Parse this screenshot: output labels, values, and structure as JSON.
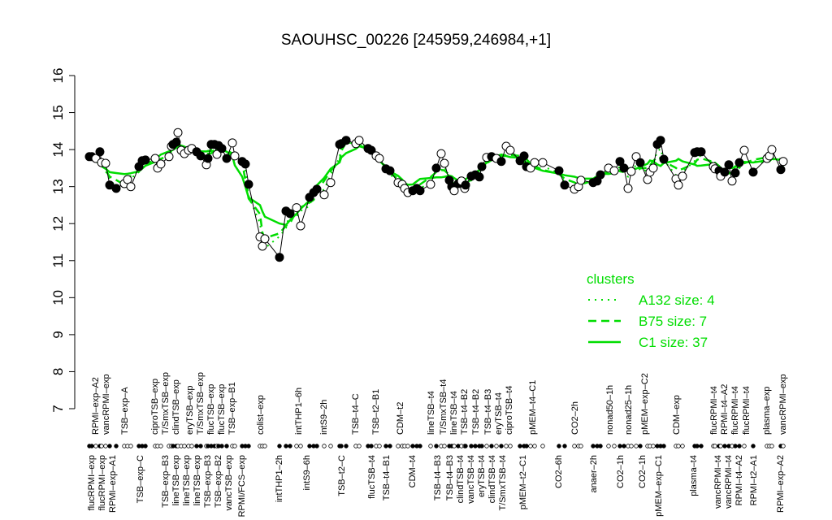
{
  "chart_data": {
    "type": "line",
    "title": "SAOUHSC_00226 [245959,246984,+1]",
    "xlabel": "",
    "ylabel": "",
    "ylim": [
      7,
      16
    ],
    "yticks": [
      "7",
      "8",
      "9",
      "10",
      "11",
      "12",
      "13",
      "14",
      "15",
      "16"
    ],
    "grid": false,
    "legend": {
      "placement": "right",
      "title": "clusters",
      "entries": [
        {
          "label": "A132 size: 4",
          "style": "dotted"
        },
        {
          "label": "B75 size: 7",
          "style": "dashed"
        },
        {
          "label": "C1 size: 37",
          "style": "solid"
        }
      ]
    },
    "colors": {
      "cluster": "#00dd00",
      "points": "#000000"
    },
    "values": [
      13.81,
      13.81,
      13.76,
      13.94,
      13.65,
      13.63,
      13.04,
      12.95,
      13.08,
      13.19,
      13.0,
      13.54,
      13.7,
      13.72,
      13.76,
      13.5,
      13.61,
      13.81,
      14.09,
      14.14,
      14.2,
      14.46,
      13.98,
      13.89,
      13.98,
      14.03,
      13.94,
      13.83,
      13.59,
      13.76,
      14.14,
      14.14,
      13.87,
      14.11,
      14.03,
      13.76,
      14.18,
      13.83,
      13.68,
      13.61,
      13.06,
      11.64,
      11.39,
      11.59,
      11.09,
      12.34,
      12.27,
      12.43,
      11.94,
      12.71,
      12.84,
      12.93,
      12.78,
      13.11,
      14.14,
      14.16,
      14.25,
      14.16,
      14.25,
      14.03,
      13.98,
      13.83,
      13.76,
      13.48,
      13.43,
      13.11,
      13.06,
      12.95,
      12.84,
      12.89,
      12.95,
      12.89,
      13.06,
      13.5,
      13.89,
      13.63,
      13.17,
      13.0,
      12.89,
      13.08,
      13.15,
      12.95,
      13.04,
      13.28,
      13.32,
      13.26,
      13.54,
      13.79,
      13.81,
      13.76,
      13.68,
      14.09,
      13.98,
      13.7,
      13.83,
      13.54,
      13.5,
      13.65,
      13.65,
      13.43,
      13.04,
      12.93,
      13.0,
      13.17,
      13.11,
      13.15,
      13.32,
      13.5,
      13.43,
      13.68,
      13.5,
      12.95,
      13.41,
      13.81,
      13.65,
      13.19,
      13.39,
      13.5,
      14.14,
      14.25,
      13.74,
      13.21,
      13.04,
      13.28,
      13.92,
      13.94,
      13.94,
      13.54,
      13.48,
      13.43,
      13.28,
      13.39,
      13.59,
      13.15,
      13.37,
      13.65,
      13.98,
      13.39,
      13.76,
      13.83,
      14.0,
      13.46,
      13.68
    ],
    "filled": [
      1,
      1,
      0,
      1,
      0,
      0,
      1,
      1,
      0,
      0,
      0,
      1,
      1,
      1,
      0,
      0,
      0,
      0,
      0,
      1,
      1,
      0,
      0,
      0,
      0,
      0,
      1,
      1,
      0,
      1,
      1,
      1,
      0,
      1,
      1,
      1,
      0,
      0,
      1,
      1,
      1,
      0,
      0,
      0,
      1,
      1,
      1,
      0,
      0,
      1,
      1,
      1,
      0,
      0,
      1,
      1,
      1,
      0,
      0,
      1,
      1,
      0,
      0,
      1,
      1,
      0,
      0,
      0,
      0,
      1,
      1,
      1,
      0,
      1,
      0,
      0,
      1,
      1,
      0,
      1,
      0,
      0,
      1,
      1,
      1,
      1,
      1,
      0,
      1,
      0,
      1,
      0,
      0,
      1,
      1,
      1,
      0,
      0,
      0,
      1,
      1,
      0,
      0,
      0,
      1,
      1,
      1,
      0,
      0,
      1,
      1,
      0,
      0,
      0,
      1,
      0,
      0,
      0,
      1,
      1,
      1,
      0,
      0,
      0,
      1,
      1,
      1,
      0,
      0,
      1,
      0,
      1,
      1,
      0,
      1,
      1,
      0,
      1,
      0,
      0,
      0,
      1,
      0
    ],
    "top_labels": [
      "RPMI–exp–A2",
      "vancRPMI–exp",
      "TSB–exp–A",
      "ciproTSB–exp",
      "T/SmxTSB–exp",
      "clindTSB–exp",
      "eryTSB–exp",
      "T/SmxTSB–exp",
      "flucTSB–exp",
      "flucTSB–exp",
      "TSB–exp–B1",
      "colist–exp",
      "intTHP1–6h",
      "intS9–2h",
      "TSB–t4–C",
      "TSB–t2–B1",
      "CDM–t2",
      "lineTSB–t4",
      "T/SmxTSB–t4",
      "lineTSB–t4",
      "TSB–t4–B2",
      "TSB–t4–B2",
      "TSB–t4–B3",
      "eryTSB–t4",
      "ciproTSB–t4",
      "pMEM–t4–C1",
      "CO2–2h",
      "nonad50–1h",
      "nonad25–1h",
      "pMEM–exp–C2",
      "CDM–exp",
      "flucRPMI–t4",
      "RPMI–t4–A2",
      "flucRPMI–t4",
      "flucRPMI–t4",
      "plasma–exp",
      "vancRPMI–exp"
    ],
    "bottom_labels": [
      "flucRPMI–exp",
      "flucRPMI–exp",
      "RPMI–exp–A1",
      "TSB–exp–C",
      "TSB–exp–B3",
      "lineTSB–exp",
      "lineTSB–exp",
      "lineTSB–exp",
      "TSB–exp–B3",
      "TSB–exp–B2",
      "vancTSB–exp",
      "RPMI/FCS–exp",
      "intTHP1–2h",
      "intS9–6h",
      "TSB–t2–C",
      "flucTSB–t4",
      "TSB–t4–B1",
      "CDM–t4",
      "TSB–t4–B3",
      "TSB–t4–B3",
      "clindTSB–t4",
      "vancTSB–t4",
      "eryTSB–t4",
      "clindTSB–t4",
      "T/SmxTSB–t4",
      "pMEM–t2–C1",
      "CO2–6h",
      "anaer–2h",
      "CO2–1h",
      "CO2–1h",
      "pMEM–exp–C1",
      "plasma–t4",
      "vancRPMI–t4",
      "vancRPMI–t4",
      "RPMI–t4–A2",
      "RPMI–t2–A1",
      "RPMI–exp–A2"
    ]
  }
}
